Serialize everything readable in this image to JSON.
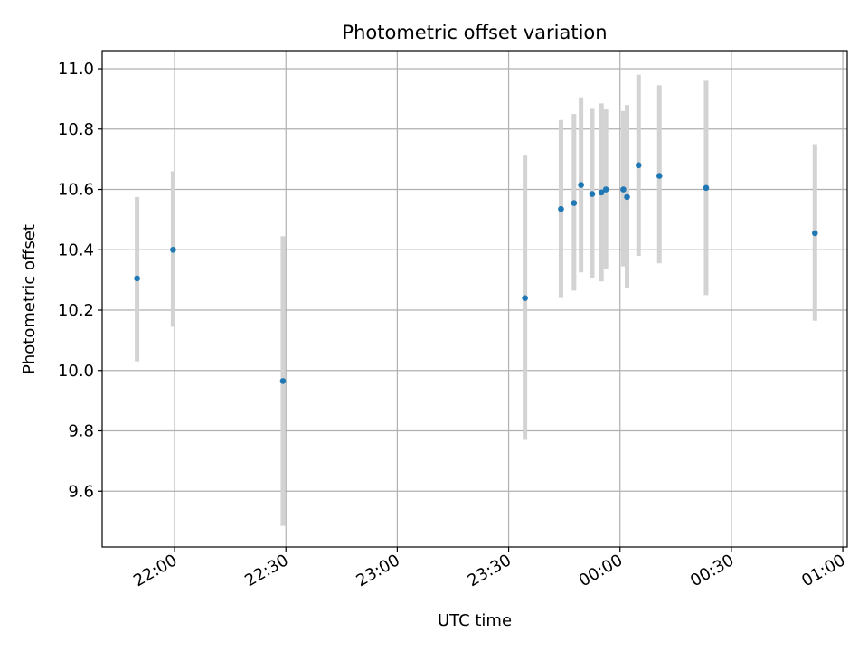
{
  "chart_data": {
    "type": "scatter",
    "title": "Photometric offset variation",
    "xlabel": "UTC time",
    "ylabel": "Photometric offset",
    "x_tick_labels": [
      "22:00",
      "22:30",
      "23:00",
      "23:30",
      "00:00",
      "00:30",
      "01:00"
    ],
    "x_tick_minutes": [
      1320,
      1350,
      1380,
      1410,
      1440,
      1470,
      1500
    ],
    "y_ticks": [
      9.6,
      9.8,
      10.0,
      10.2,
      10.4,
      10.6,
      10.8,
      11.0
    ],
    "y_tick_labels": [
      "9.6",
      "9.8",
      "10.0",
      "10.2",
      "10.4",
      "10.6",
      "10.8",
      "11.0"
    ],
    "xlim_minutes": [
      1300.5,
      1501.2
    ],
    "ylim": [
      9.415,
      11.06
    ],
    "grid": true,
    "points": [
      {
        "t_minutes": 1309.9,
        "y": 10.305,
        "err_low": 10.03,
        "err_high": 10.575
      },
      {
        "t_minutes": 1319.6,
        "y": 10.4,
        "err_low": 10.145,
        "err_high": 10.66
      },
      {
        "t_minutes": 1349.2,
        "y": 9.965,
        "err_low": 9.485,
        "err_high": 10.445
      },
      {
        "t_minutes": 1414.4,
        "y": 10.24,
        "err_low": 9.77,
        "err_high": 10.715
      },
      {
        "t_minutes": 1424.1,
        "y": 10.535,
        "err_low": 10.24,
        "err_high": 10.83
      },
      {
        "t_minutes": 1427.6,
        "y": 10.555,
        "err_low": 10.265,
        "err_high": 10.85
      },
      {
        "t_minutes": 1429.5,
        "y": 10.615,
        "err_low": 10.325,
        "err_high": 10.905
      },
      {
        "t_minutes": 1432.5,
        "y": 10.585,
        "err_low": 10.305,
        "err_high": 10.87
      },
      {
        "t_minutes": 1435.0,
        "y": 10.59,
        "err_low": 10.295,
        "err_high": 10.885
      },
      {
        "t_minutes": 1436.2,
        "y": 10.6,
        "err_low": 10.335,
        "err_high": 10.865
      },
      {
        "t_minutes": 1440.9,
        "y": 10.6,
        "err_low": 10.345,
        "err_high": 10.86
      },
      {
        "t_minutes": 1441.9,
        "y": 10.575,
        "err_low": 10.275,
        "err_high": 10.88
      },
      {
        "t_minutes": 1445.0,
        "y": 10.68,
        "err_low": 10.38,
        "err_high": 10.98
      },
      {
        "t_minutes": 1450.6,
        "y": 10.645,
        "err_low": 10.355,
        "err_high": 10.945
      },
      {
        "t_minutes": 1463.2,
        "y": 10.605,
        "err_low": 10.25,
        "err_high": 10.96
      },
      {
        "t_minutes": 1492.5,
        "y": 10.455,
        "err_low": 10.165,
        "err_high": 10.75
      }
    ],
    "colors": {
      "point": "#1f77b4",
      "errorbar": "#d3d3d3",
      "grid": "#b0b0b0",
      "axis": "#000000"
    }
  }
}
